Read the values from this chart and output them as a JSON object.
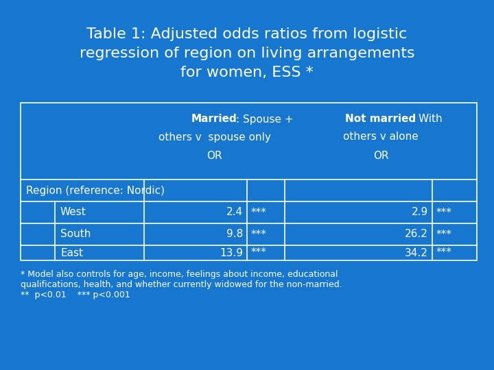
{
  "title": "Table 1: Adjusted odds ratios from logistic\nregression of region on living arrangements\nfor women, ESS *",
  "background_color": "#1777CE",
  "table_border_color": "#FFFFFF",
  "text_color": "#FFFFFF",
  "region_label": "Region (reference: Nordic)",
  "rows": [
    {
      "label": "West",
      "val1": "2.4",
      "sig1": "***",
      "val2": "2.9",
      "sig2": "***"
    },
    {
      "label": "South",
      "val1": "9.8",
      "sig1": "***",
      "val2": "26.2",
      "sig2": "***"
    },
    {
      "label": "East",
      "val1": "13.9",
      "sig1": "***",
      "val2": "34.2",
      "sig2": "***"
    }
  ],
  "footnote_line1": "* Model also controls for age, income, feelings about income, educational",
  "footnote_line2": "qualifications, health, and whether currently widowed for the non-married.",
  "footnote_line3": "**  p<0.01    *** p<0.001",
  "title_fontsize": 16,
  "header_fontsize": 11,
  "cell_fontsize": 11,
  "footnote_fontsize": 9
}
